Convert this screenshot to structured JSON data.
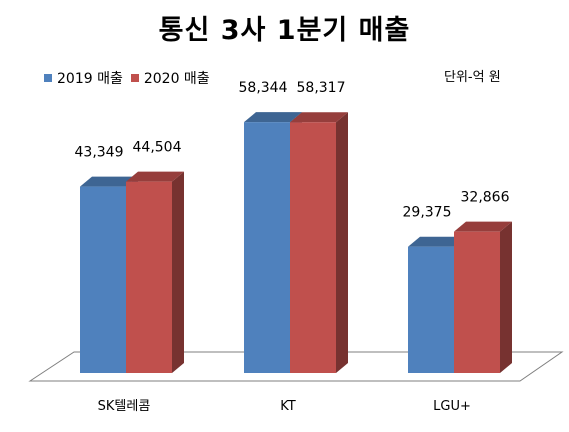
{
  "chart_data": {
    "type": "bar",
    "title": "통신 3사 1분기 매출",
    "unit_note": "단위-억  원",
    "categories": [
      "SK텔레콤",
      "KT",
      "LGU+"
    ],
    "series": [
      {
        "name": "2019 매출",
        "values": [
          43349,
          58344,
          29375
        ],
        "labels": [
          "43,349",
          "58,344",
          "29,375"
        ],
        "color": "#4f81bd"
      },
      {
        "name": "2020 매출",
        "values": [
          44504,
          58317,
          32866
        ],
        "labels": [
          "44,504",
          "58,317",
          "32,866"
        ],
        "color": "#c0504d"
      }
    ],
    "ylim": [
      0,
      60000
    ],
    "grid": false,
    "legend_position": "top-left",
    "style": "3d-column"
  }
}
